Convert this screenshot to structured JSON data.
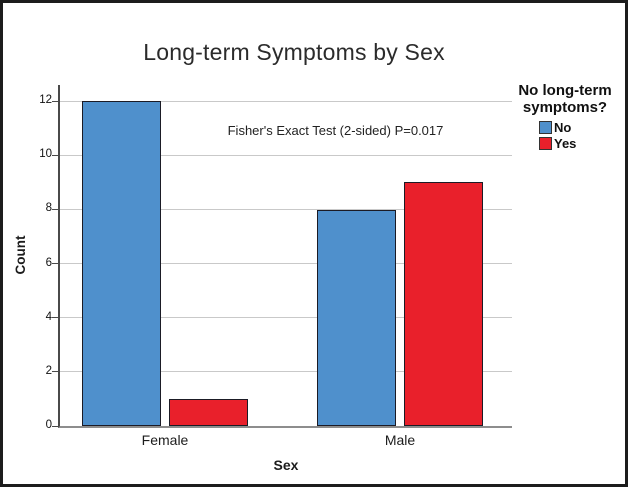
{
  "figure": {
    "title": "Long-term Symptoms by Sex",
    "annotation": "Fisher's Exact Test (2-sided) P=0.017"
  },
  "chart_data": {
    "type": "bar",
    "title": "Long-term Symptoms by Sex",
    "annotation": "Fisher's Exact Test (2-sided) P=0.017",
    "categories": [
      "Female",
      "Male"
    ],
    "series": [
      {
        "name": "No",
        "color": "#4F90CC",
        "values": [
          12,
          8
        ]
      },
      {
        "name": "Yes",
        "color": "#E9202B",
        "values": [
          1,
          9
        ]
      }
    ],
    "xlabel": "Sex",
    "ylabel": "Count",
    "ylim": [
      0,
      12.6
    ],
    "yticks": [
      0,
      2,
      4,
      6,
      8,
      10,
      12
    ],
    "grid": true,
    "gridline_color": "#C9C9C9",
    "bar_border_color": "#1B1B25",
    "legend_position": "right",
    "legend_title": "No long-term symptoms?"
  }
}
